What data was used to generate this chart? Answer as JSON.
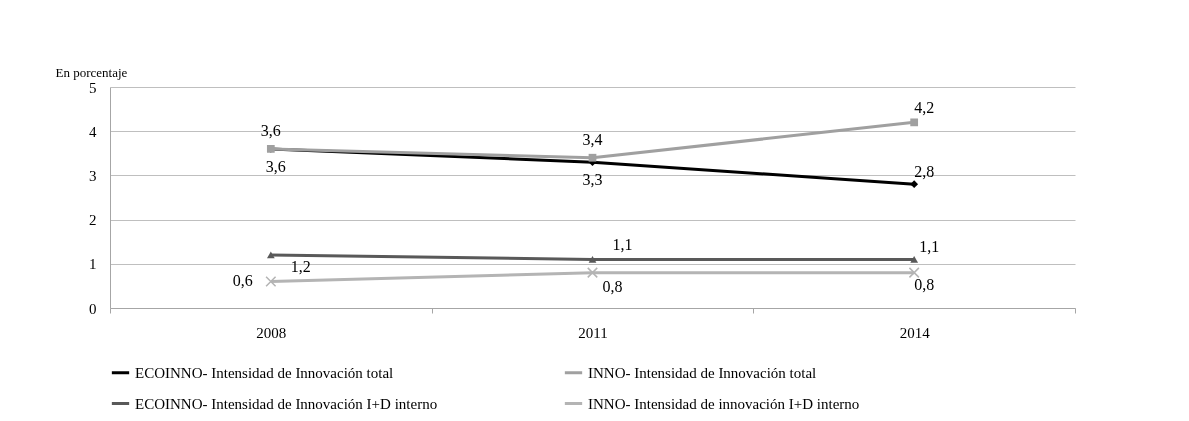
{
  "chart_data": {
    "type": "line",
    "ylabel": "En porcentaje",
    "categories": [
      "2008",
      "2011",
      "2014"
    ],
    "ylim": [
      0,
      5
    ],
    "yticks": [
      0,
      1,
      2,
      3,
      4,
      5
    ],
    "grid": "y",
    "legend": "bottom",
    "line_style": "solid",
    "series": [
      {
        "name": "ECOINNO- Intensidad de Innovación total",
        "color": "#000000",
        "marker": "diamond",
        "values": [
          3.6,
          3.3,
          2.8
        ],
        "value_labels": [
          "3,6",
          "3,3",
          "2,8"
        ]
      },
      {
        "name": "INNO- Intensidad de Innovación total",
        "color": "#a0a0a0",
        "marker": "square",
        "values": [
          3.6,
          3.4,
          4.2
        ],
        "value_labels": [
          "3,6",
          "3,4",
          "4,2"
        ]
      },
      {
        "name": "ECOINNO- Intensidad de Innovación I+D interno",
        "color": "#595959",
        "marker": "triangle",
        "values": [
          1.2,
          1.1,
          1.1
        ],
        "value_labels": [
          "1,2",
          "1,1",
          "1,1"
        ]
      },
      {
        "name": "INNO- Intensidad de innovación I+D interno",
        "color": "#b4b4b4",
        "marker": "cross",
        "values": [
          0.6,
          0.8,
          0.8
        ],
        "value_labels": [
          "0,6",
          "0,8",
          "0,8"
        ]
      }
    ]
  }
}
